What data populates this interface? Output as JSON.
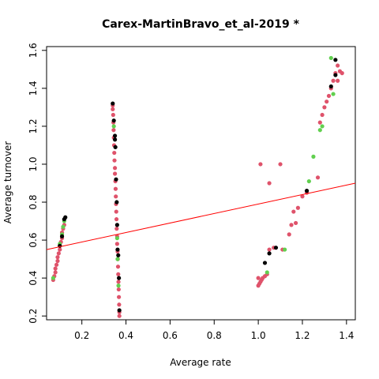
{
  "chart_data": {
    "type": "scatter",
    "title": "Carex-MartinBravo_et_al-2019 *",
    "xlabel": "Average rate",
    "ylabel": "Average turnover",
    "xlim": [
      0.04,
      1.44
    ],
    "ylim": [
      0.18,
      1.62
    ],
    "x_ticks": [
      "0.2",
      "0.4",
      "0.6",
      "0.8",
      "1.0",
      "1.2",
      "1.4"
    ],
    "y_ticks": [
      "0.2",
      "0.4",
      "0.6",
      "0.8",
      "1.0",
      "1.2",
      "1.4",
      "1.6"
    ],
    "grid": false,
    "legend": "none",
    "colors": {
      "red": "#DF536B",
      "green": "#61D04F",
      "black": "#000000",
      "line": "#FF0000"
    },
    "trend_line": {
      "x1": 0.04,
      "y1": 0.55,
      "x2": 1.44,
      "y2": 0.9
    },
    "series": [
      {
        "color": "red",
        "points": [
          [
            0.07,
            0.39
          ],
          [
            0.075,
            0.41
          ],
          [
            0.08,
            0.43
          ],
          [
            0.08,
            0.45
          ],
          [
            0.085,
            0.47
          ],
          [
            0.09,
            0.49
          ],
          [
            0.09,
            0.51
          ],
          [
            0.095,
            0.53
          ],
          [
            0.1,
            0.55
          ],
          [
            0.1,
            0.57
          ],
          [
            0.105,
            0.59
          ],
          [
            0.11,
            0.61
          ],
          [
            0.11,
            0.64
          ],
          [
            0.115,
            0.66
          ],
          [
            0.12,
            0.68
          ],
          [
            0.34,
            1.31
          ],
          [
            0.34,
            1.29
          ],
          [
            0.342,
            1.26
          ],
          [
            0.343,
            1.22
          ],
          [
            0.344,
            1.18
          ],
          [
            0.345,
            1.14
          ],
          [
            0.346,
            1.1
          ],
          [
            0.347,
            1.06
          ],
          [
            0.348,
            1.02
          ],
          [
            0.35,
            0.98
          ],
          [
            0.35,
            0.95
          ],
          [
            0.352,
            0.91
          ],
          [
            0.353,
            0.87
          ],
          [
            0.354,
            0.83
          ],
          [
            0.355,
            0.79
          ],
          [
            0.356,
            0.75
          ],
          [
            0.357,
            0.71
          ],
          [
            0.358,
            0.66
          ],
          [
            0.36,
            0.62
          ],
          [
            0.36,
            0.58
          ],
          [
            0.362,
            0.54
          ],
          [
            0.363,
            0.5
          ],
          [
            0.364,
            0.46
          ],
          [
            0.365,
            0.42
          ],
          [
            0.366,
            0.38
          ],
          [
            0.367,
            0.34
          ],
          [
            0.368,
            0.3
          ],
          [
            0.369,
            0.26
          ],
          [
            0.37,
            0.22
          ],
          [
            0.37,
            0.2
          ],
          [
            1.0,
            0.36
          ],
          [
            1.005,
            0.37
          ],
          [
            1.01,
            0.38
          ],
          [
            1.0,
            0.4
          ],
          [
            1.015,
            0.39
          ],
          [
            1.02,
            0.4
          ],
          [
            1.03,
            0.41
          ],
          [
            1.04,
            0.42
          ],
          [
            1.05,
            0.55
          ],
          [
            1.07,
            0.56
          ],
          [
            1.11,
            0.55
          ],
          [
            1.14,
            0.63
          ],
          [
            1.15,
            0.68
          ],
          [
            1.16,
            0.75
          ],
          [
            1.17,
            0.69
          ],
          [
            1.18,
            0.77
          ],
          [
            1.2,
            0.83
          ],
          [
            1.22,
            0.85
          ],
          [
            1.01,
            1.0
          ],
          [
            1.05,
            0.9
          ],
          [
            1.1,
            1.0
          ],
          [
            1.27,
            0.93
          ],
          [
            1.28,
            1.22
          ],
          [
            1.29,
            1.26
          ],
          [
            1.3,
            1.3
          ],
          [
            1.31,
            1.33
          ],
          [
            1.32,
            1.36
          ],
          [
            1.33,
            1.4
          ],
          [
            1.34,
            1.44
          ],
          [
            1.35,
            1.48
          ],
          [
            1.36,
            1.52
          ],
          [
            1.36,
            1.44
          ],
          [
            1.37,
            1.49
          ],
          [
            1.38,
            1.48
          ]
        ]
      },
      {
        "color": "green",
        "points": [
          [
            0.07,
            0.4
          ],
          [
            0.1,
            0.58
          ],
          [
            0.11,
            0.63
          ],
          [
            0.115,
            0.67
          ],
          [
            0.12,
            0.7
          ],
          [
            0.345,
            1.2
          ],
          [
            0.36,
            0.61
          ],
          [
            0.362,
            0.5
          ],
          [
            0.366,
            0.36
          ],
          [
            1.04,
            0.43
          ],
          [
            1.12,
            0.55
          ],
          [
            1.23,
            0.91
          ],
          [
            1.25,
            1.04
          ],
          [
            1.28,
            1.18
          ],
          [
            1.29,
            1.2
          ],
          [
            1.33,
            1.56
          ],
          [
            1.34,
            1.37
          ]
        ]
      },
      {
        "color": "black",
        "points": [
          [
            0.1,
            0.57
          ],
          [
            0.11,
            0.62
          ],
          [
            0.12,
            0.71
          ],
          [
            0.125,
            0.72
          ],
          [
            0.34,
            1.32
          ],
          [
            0.345,
            1.23
          ],
          [
            0.35,
            1.15
          ],
          [
            0.35,
            1.13
          ],
          [
            0.352,
            1.09
          ],
          [
            0.355,
            0.92
          ],
          [
            0.358,
            0.8
          ],
          [
            0.36,
            0.68
          ],
          [
            0.362,
            0.55
          ],
          [
            0.365,
            0.52
          ],
          [
            0.368,
            0.4
          ],
          [
            0.37,
            0.23
          ],
          [
            1.03,
            0.48
          ],
          [
            1.05,
            0.53
          ],
          [
            1.08,
            0.56
          ],
          [
            1.22,
            0.86
          ],
          [
            1.33,
            1.41
          ],
          [
            1.35,
            1.47
          ],
          [
            1.35,
            1.55
          ]
        ]
      }
    ]
  }
}
